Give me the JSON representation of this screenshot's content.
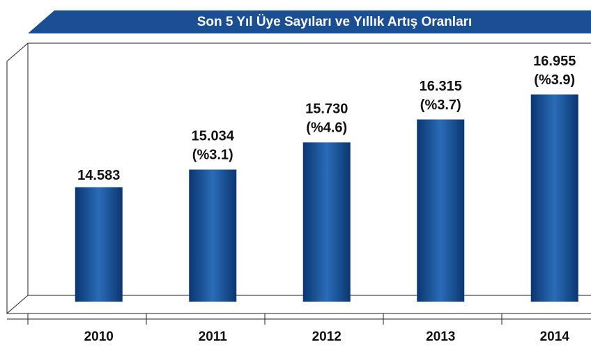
{
  "chart_data": {
    "type": "bar",
    "title": "Son 5 Yıl Üye Sayıları ve Yıllık Artış Oranları",
    "categories": [
      "2010",
      "2011",
      "2012",
      "2013",
      "2014"
    ],
    "values": [
      14583,
      15034,
      15730,
      16315,
      16955
    ],
    "value_labels": [
      "14.583",
      "15.034",
      "15.730",
      "16.315",
      "16.955"
    ],
    "growth_labels": [
      null,
      "(%3.1)",
      "(%4.6)",
      "(%3.7)",
      "(%3.9)"
    ],
    "color": "#1d5ba6",
    "ylim": [
      11660,
      18300
    ]
  }
}
